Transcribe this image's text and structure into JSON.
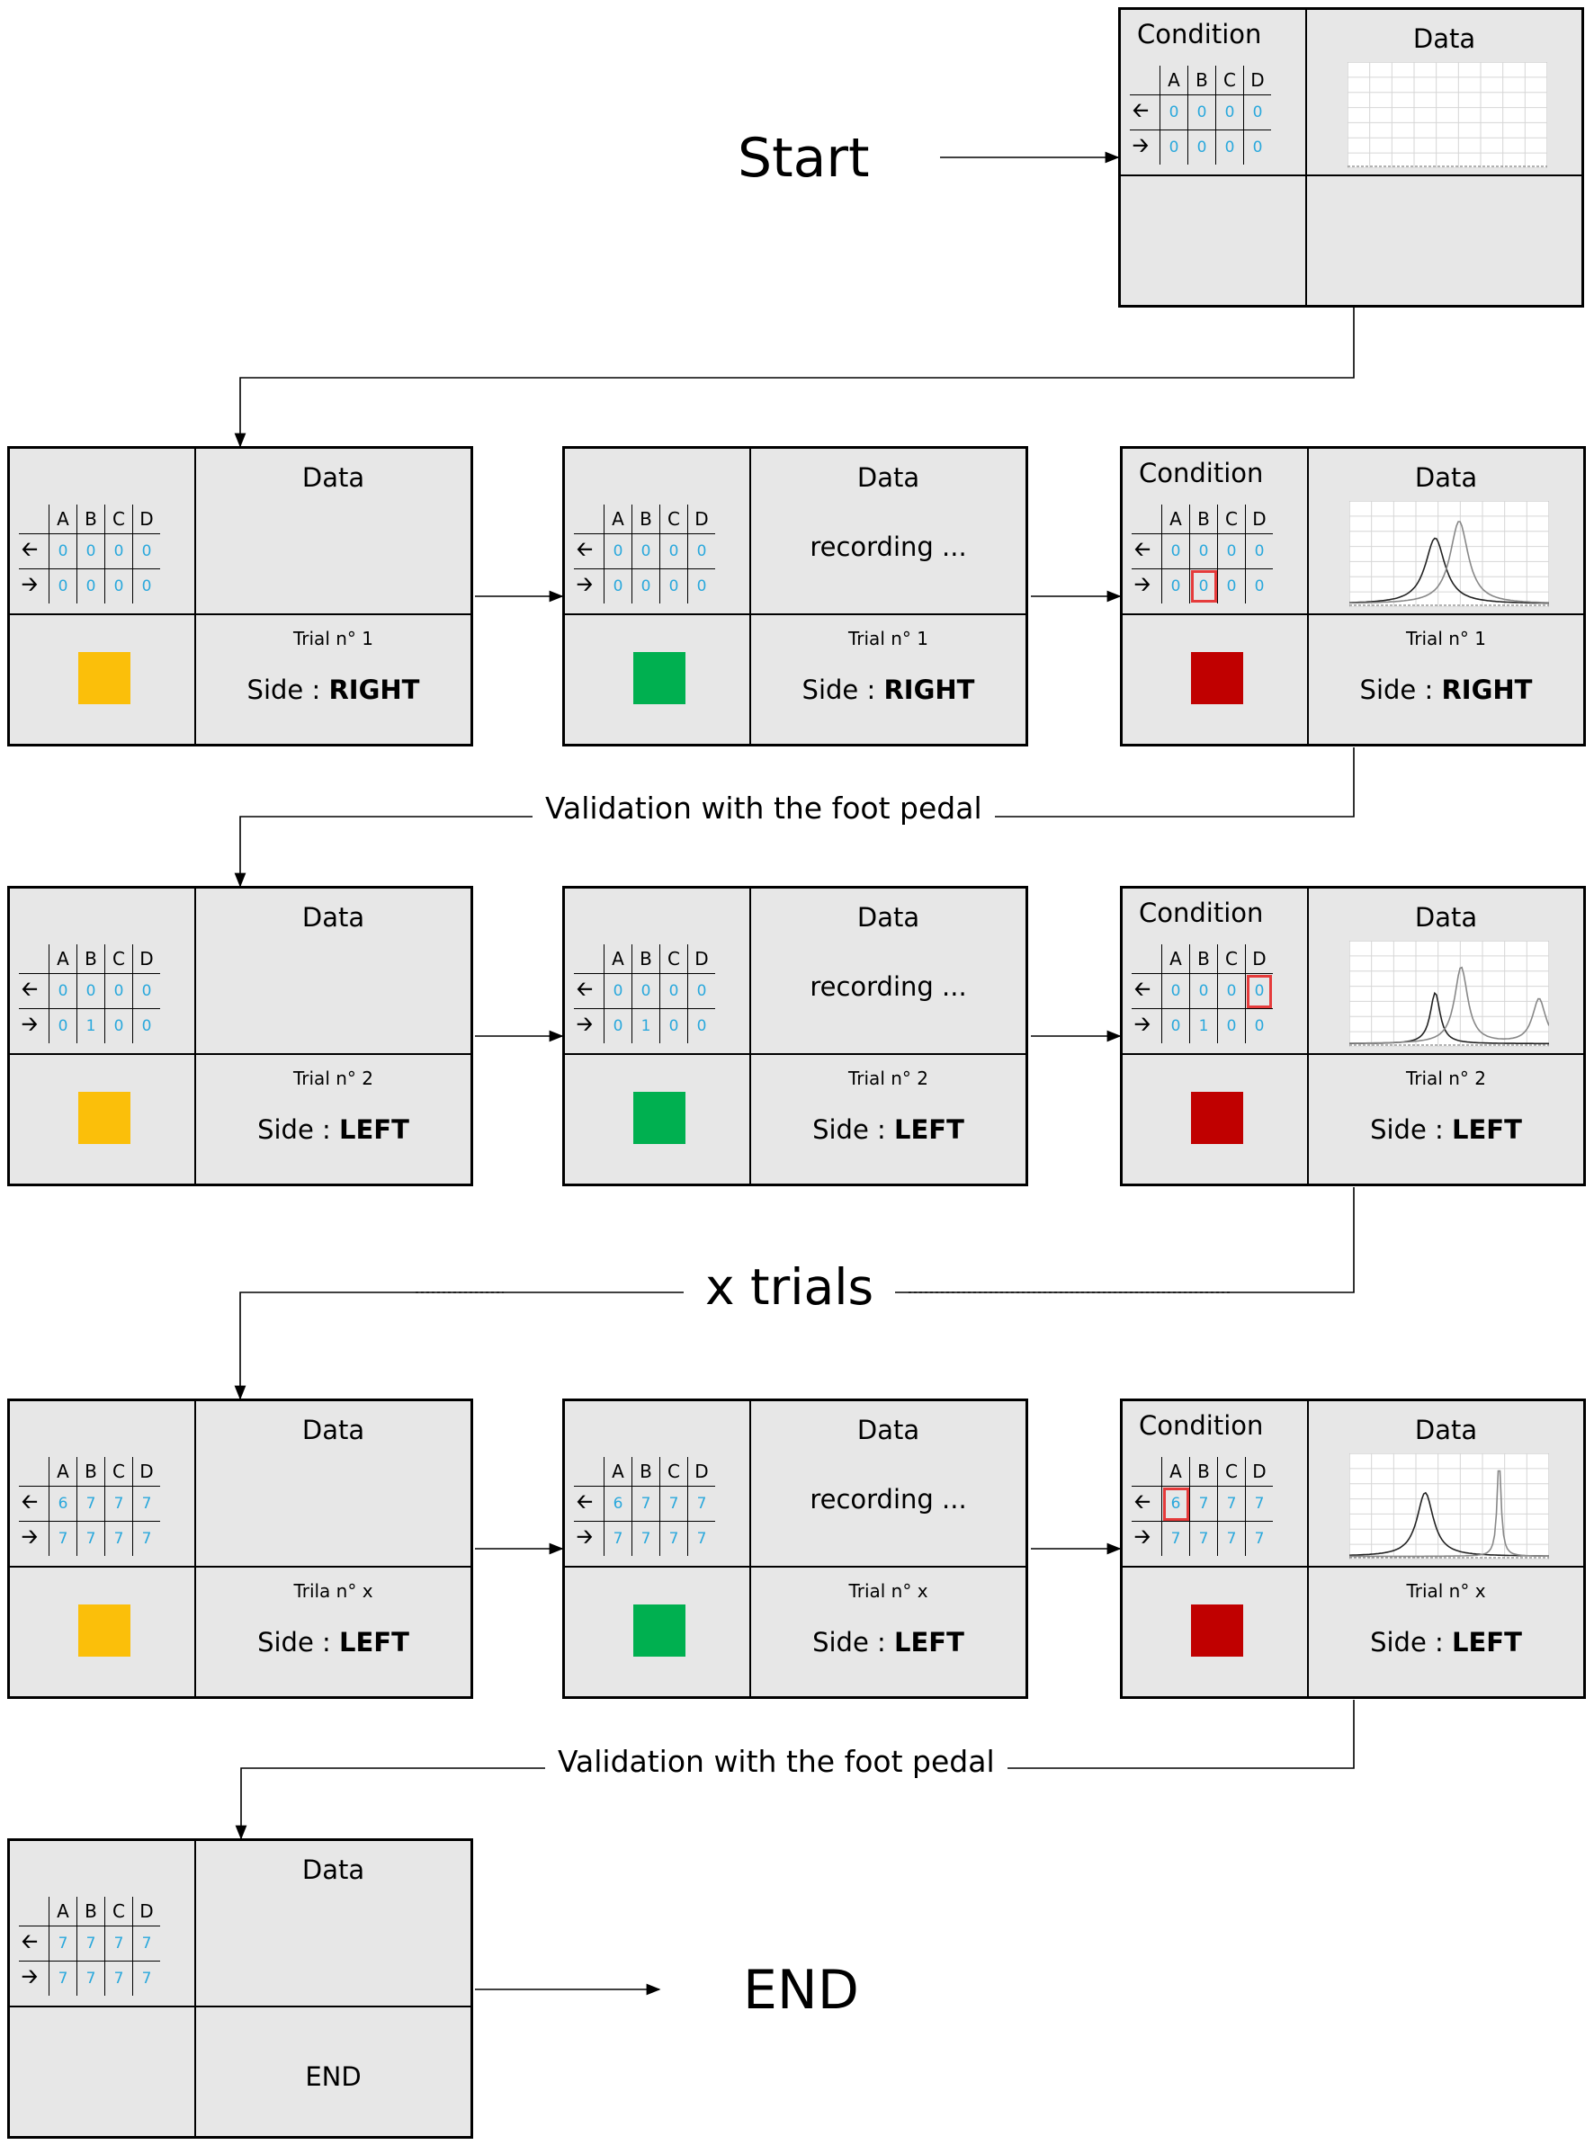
{
  "labels": {
    "start": "Start",
    "end": "END",
    "validation_1": "Validation with the foot pedal",
    "x_trials": "x trials",
    "validation_2": "Validation with the foot pedal"
  },
  "colors": {
    "yellow": "#fbbf0a",
    "green": "#00b050",
    "red": "#c00000",
    "highlight": "#e53b3b",
    "cell_value": "#2aa8dc"
  },
  "icons": {
    "left": "left-arrow-icon",
    "right": "right-arrow-icon"
  },
  "screens": [
    {
      "id": "start",
      "condition": "Condition",
      "data": "Data",
      "columns": [
        "A",
        "B",
        "C",
        "D"
      ],
      "rows": [
        [
          "0",
          "0",
          "0",
          "0"
        ],
        [
          "0",
          "0",
          "0",
          "0"
        ]
      ],
      "highlight": null,
      "status": "",
      "trial": "",
      "side_label": "",
      "side_value": "",
      "light": "",
      "end": "",
      "chart": "empty"
    },
    {
      "id": "t1-wait",
      "condition": "",
      "data": "Data",
      "columns": [
        "A",
        "B",
        "C",
        "D"
      ],
      "rows": [
        [
          "0",
          "0",
          "0",
          "0"
        ],
        [
          "0",
          "0",
          "0",
          "0"
        ]
      ],
      "highlight": null,
      "status": "",
      "trial": "Trial n° 1",
      "side_label": "Side : ",
      "side_value": "RIGHT",
      "light": "yellow",
      "end": "",
      "chart": "none"
    },
    {
      "id": "t1-rec",
      "condition": "",
      "data": "Data",
      "columns": [
        "A",
        "B",
        "C",
        "D"
      ],
      "rows": [
        [
          "0",
          "0",
          "0",
          "0"
        ],
        [
          "0",
          "0",
          "0",
          "0"
        ]
      ],
      "highlight": null,
      "status": "recording ...",
      "trial": "Trial n° 1",
      "side_label": "Side : ",
      "side_value": "RIGHT",
      "light": "green",
      "end": "",
      "chart": "none"
    },
    {
      "id": "t1-done",
      "condition": "Condition",
      "data": "Data",
      "columns": [
        "A",
        "B",
        "C",
        "D"
      ],
      "rows": [
        [
          "0",
          "0",
          "0",
          "0"
        ],
        [
          "0",
          "0",
          "0",
          "0"
        ]
      ],
      "highlight": [
        1,
        1
      ],
      "status": "",
      "trial": "Trial n° 1",
      "side_label": "Side : ",
      "side_value": "RIGHT",
      "light": "red",
      "end": "",
      "chart": "two-peaks-a"
    },
    {
      "id": "t2-wait",
      "condition": "",
      "data": "Data",
      "columns": [
        "A",
        "B",
        "C",
        "D"
      ],
      "rows": [
        [
          "0",
          "0",
          "0",
          "0"
        ],
        [
          "0",
          "1",
          "0",
          "0"
        ]
      ],
      "highlight": null,
      "status": "",
      "trial": "Trial n° 2",
      "side_label": "Side : ",
      "side_value": "LEFT",
      "light": "yellow",
      "end": "",
      "chart": "none"
    },
    {
      "id": "t2-rec",
      "condition": "",
      "data": "Data",
      "columns": [
        "A",
        "B",
        "C",
        "D"
      ],
      "rows": [
        [
          "0",
          "0",
          "0",
          "0"
        ],
        [
          "0",
          "1",
          "0",
          "0"
        ]
      ],
      "highlight": null,
      "status": "recording ...",
      "trial": "Trial n° 2",
      "side_label": "Side : ",
      "side_value": "LEFT",
      "light": "green",
      "end": "",
      "chart": "none"
    },
    {
      "id": "t2-done",
      "condition": "Condition",
      "data": "Data",
      "columns": [
        "A",
        "B",
        "C",
        "D"
      ],
      "rows": [
        [
          "0",
          "0",
          "0",
          "0"
        ],
        [
          "0",
          "1",
          "0",
          "0"
        ]
      ],
      "highlight": [
        0,
        3
      ],
      "status": "",
      "trial": "Trial n° 2",
      "side_label": "Side : ",
      "side_value": "LEFT",
      "light": "red",
      "end": "",
      "chart": "three-peaks"
    },
    {
      "id": "tx-wait",
      "condition": "",
      "data": "Data",
      "columns": [
        "A",
        "B",
        "C",
        "D"
      ],
      "rows": [
        [
          "6",
          "7",
          "7",
          "7"
        ],
        [
          "7",
          "7",
          "7",
          "7"
        ]
      ],
      "highlight": null,
      "status": "",
      "trial": "Trila n° x",
      "side_label": "Side : ",
      "side_value": "LEFT",
      "light": "yellow",
      "end": "",
      "chart": "none"
    },
    {
      "id": "tx-rec",
      "condition": "",
      "data": "Data",
      "columns": [
        "A",
        "B",
        "C",
        "D"
      ],
      "rows": [
        [
          "6",
          "7",
          "7",
          "7"
        ],
        [
          "7",
          "7",
          "7",
          "7"
        ]
      ],
      "highlight": null,
      "status": "recording ...",
      "trial": "Trial n° x",
      "side_label": "Side : ",
      "side_value": "LEFT",
      "light": "green",
      "end": "",
      "chart": "none"
    },
    {
      "id": "tx-done",
      "condition": "Condition",
      "data": "Data",
      "columns": [
        "A",
        "B",
        "C",
        "D"
      ],
      "rows": [
        [
          "6",
          "7",
          "7",
          "7"
        ],
        [
          "7",
          "7",
          "7",
          "7"
        ]
      ],
      "highlight": [
        0,
        0
      ],
      "status": "",
      "trial": "Trial n° x",
      "side_label": "Side : ",
      "side_value": "LEFT",
      "light": "red",
      "end": "",
      "chart": "two-peaks-b"
    },
    {
      "id": "end",
      "condition": "",
      "data": "Data",
      "columns": [
        "A",
        "B",
        "C",
        "D"
      ],
      "rows": [
        [
          "7",
          "7",
          "7",
          "7"
        ],
        [
          "7",
          "7",
          "7",
          "7"
        ]
      ],
      "highlight": null,
      "status": "",
      "trial": "",
      "side_label": "",
      "side_value": "",
      "light": "",
      "end": "END",
      "chart": "none"
    }
  ]
}
